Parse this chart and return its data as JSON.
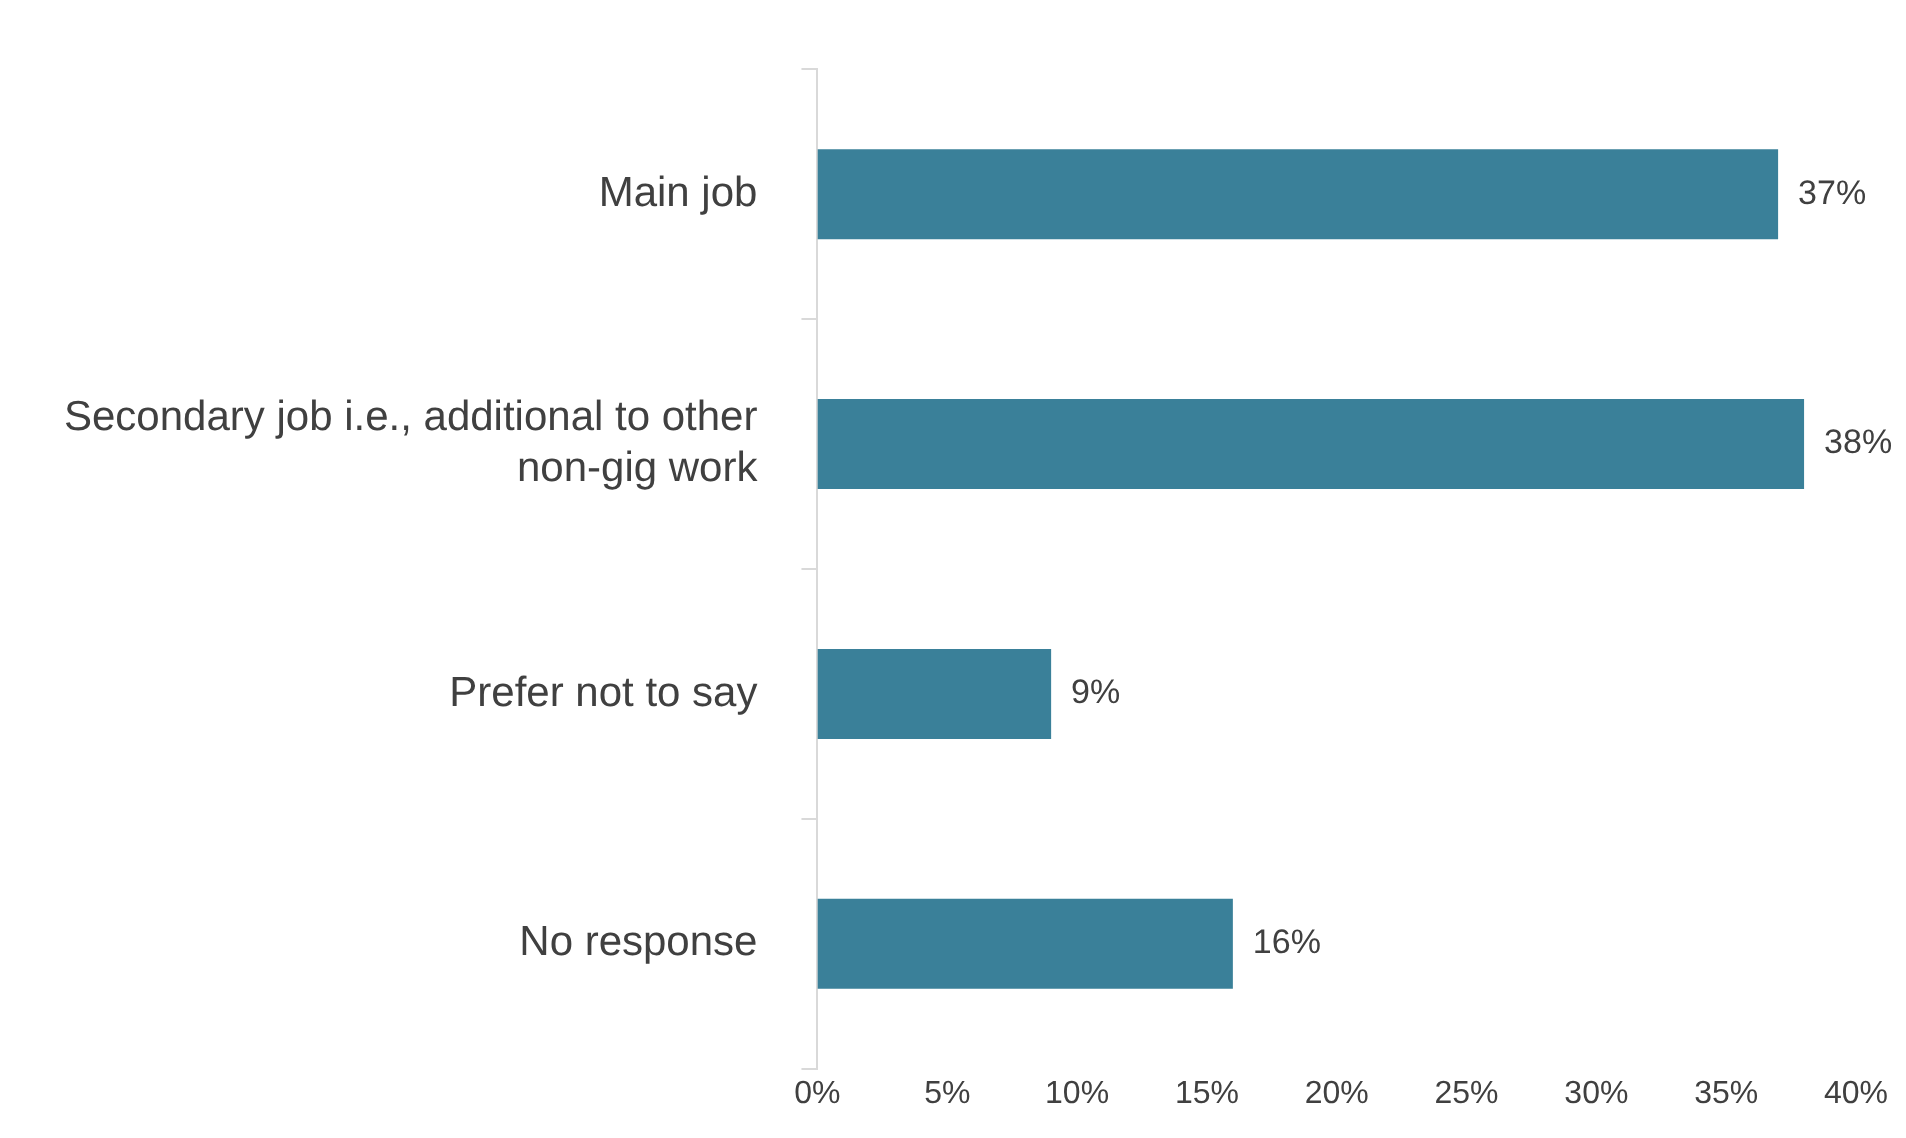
{
  "chart_data": {
    "type": "bar",
    "orientation": "horizontal",
    "categories": [
      "Main job",
      "Secondary job i.e., additional to other non-gig work",
      "Prefer not to say",
      "No response"
    ],
    "values": [
      37,
      38,
      9,
      16
    ],
    "value_labels": [
      "37%",
      "38%",
      "9%",
      "16%"
    ],
    "color": "#3a8099",
    "xlim": [
      0,
      40
    ],
    "xticks": [
      {
        "value": 0,
        "label": "0%"
      },
      {
        "value": 5,
        "label": "5%"
      },
      {
        "value": 10,
        "label": "10%"
      },
      {
        "value": 15,
        "label": "15%"
      },
      {
        "value": 20,
        "label": "20%"
      },
      {
        "value": 25,
        "label": "25%"
      },
      {
        "value": 30,
        "label": "30%"
      },
      {
        "value": 35,
        "label": "35%"
      },
      {
        "value": 40,
        "label": "40%"
      }
    ],
    "grid": false,
    "legend": false
  }
}
